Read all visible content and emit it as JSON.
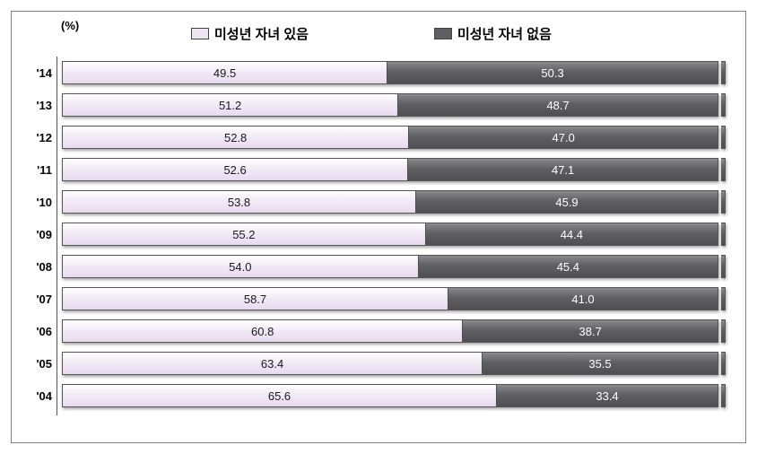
{
  "chart": {
    "unit_label": "(%)",
    "legend": {
      "series_a": {
        "label": "미성년 자녀 있음",
        "color": "#eee4f2"
      },
      "series_b": {
        "label": "미성년 자녀 없음",
        "color": "#5f5f63"
      }
    },
    "colors": {
      "light_bar": "#eee4f2",
      "dark_bar": "#5f5f63",
      "border": "#555555",
      "text_dark": "#000000",
      "text_light": "#ffffff"
    },
    "full_scale_pct": 100,
    "rows": [
      {
        "year": "'14",
        "a": 49.5,
        "b": 50.3
      },
      {
        "year": "'13",
        "a": 51.2,
        "b": 48.7
      },
      {
        "year": "'12",
        "a": 52.8,
        "b": 47.0
      },
      {
        "year": "'11",
        "a": 52.6,
        "b": 47.1
      },
      {
        "year": "'10",
        "a": 53.8,
        "b": 45.9
      },
      {
        "year": "'09",
        "a": 55.2,
        "b": 44.4
      },
      {
        "year": "'08",
        "a": 54.0,
        "b": 45.4
      },
      {
        "year": "'07",
        "a": 58.7,
        "b": 41.0
      },
      {
        "year": "'06",
        "a": 60.8,
        "b": 38.7
      },
      {
        "year": "'05",
        "a": 63.4,
        "b": 35.5
      },
      {
        "year": "'04",
        "a": 65.6,
        "b": 33.4
      }
    ]
  }
}
